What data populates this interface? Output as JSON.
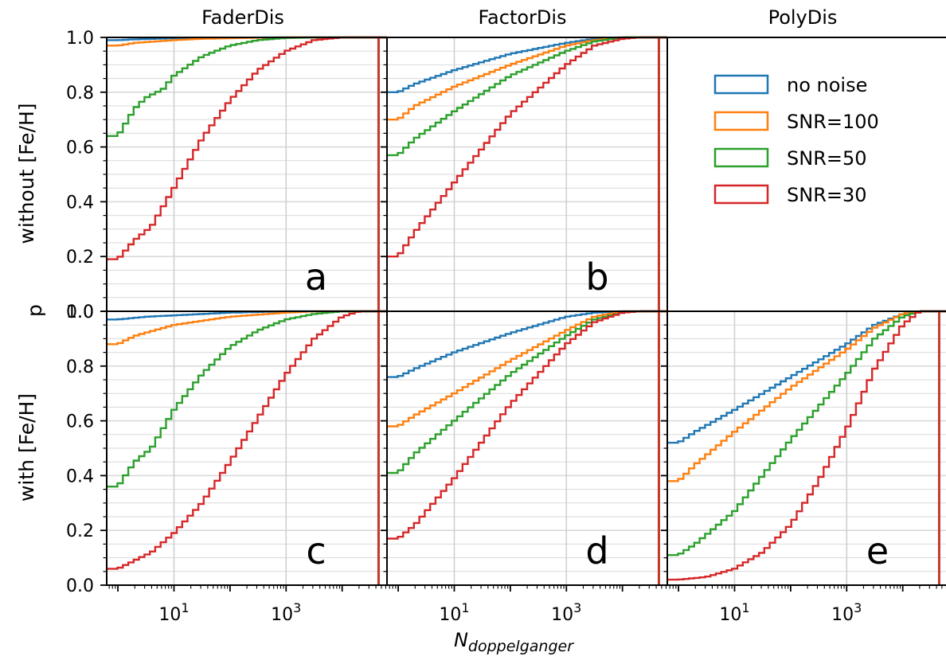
{
  "chart_data": {
    "type": "line",
    "steps": 52,
    "xlabel": "N",
    "xlabel_sub": "doppelganger",
    "ylabel_shared": "p",
    "row_labels": [
      "without [Fe/H]",
      "with [Fe/H]"
    ],
    "col_titles": [
      "FaderDis",
      "FactorDis",
      "PolyDis"
    ],
    "x_scale": "log",
    "xlim_log10": [
      -0.2,
      4.8
    ],
    "ylim": [
      0.0,
      1.0
    ],
    "x_ticks": [
      {
        "exp": 1,
        "base": "10",
        "sup": "1"
      },
      {
        "exp": 3,
        "base": "10",
        "sup": "3"
      }
    ],
    "y_ticks": [
      {
        "v": 0.0,
        "label": "0.0"
      },
      {
        "v": 0.2,
        "label": "0.2"
      },
      {
        "v": 0.4,
        "label": "0.4"
      },
      {
        "v": 0.6,
        "label": "0.6"
      },
      {
        "v": 0.8,
        "label": "0.8"
      },
      {
        "v": 1.0,
        "label": "1.0"
      }
    ],
    "grid": true,
    "vertical_line_log10": 4.65,
    "legend": {
      "location": "upper right of panel (top row, PolyDis)",
      "entries": [
        "no noise",
        "SNR=100",
        "SNR=50",
        "SNR=30"
      ]
    },
    "colors": {
      "no noise": "#1f77b4",
      "SNR=100": "#ff7f0e",
      "SNR=50": "#2ca02c",
      "SNR=30": "#d62728",
      "vline": "#c0392b"
    },
    "panels": [
      {
        "letter": "a",
        "row": 0,
        "col": 0,
        "series": [
          {
            "name": "no noise",
            "curve": [
              [
                0.0,
                0.99
              ],
              [
                0.3,
                0.993
              ],
              [
                1.0,
                0.997
              ],
              [
                2.0,
                0.999
              ],
              [
                3.0,
                1.0
              ],
              [
                4.8,
                1.0
              ]
            ]
          },
          {
            "name": "SNR=100",
            "curve": [
              [
                0.0,
                0.97
              ],
              [
                0.3,
                0.98
              ],
              [
                1.0,
                0.99
              ],
              [
                1.5,
                0.995
              ],
              [
                2.5,
                0.999
              ],
              [
                3.0,
                1.0
              ],
              [
                4.8,
                1.0
              ]
            ]
          },
          {
            "name": "SNR=50",
            "curve": [
              [
                0.0,
                0.64
              ],
              [
                0.3,
                0.74
              ],
              [
                0.5,
                0.78
              ],
              [
                0.8,
                0.81
              ],
              [
                1.0,
                0.86
              ],
              [
                1.5,
                0.93
              ],
              [
                2.0,
                0.97
              ],
              [
                2.5,
                0.99
              ],
              [
                3.0,
                0.998
              ],
              [
                3.5,
                1.0
              ],
              [
                4.8,
                1.0
              ]
            ]
          },
          {
            "name": "SNR=30",
            "curve": [
              [
                0.0,
                0.19
              ],
              [
                0.3,
                0.26
              ],
              [
                0.6,
                0.31
              ],
              [
                1.0,
                0.45
              ],
              [
                1.5,
                0.63
              ],
              [
                2.0,
                0.77
              ],
              [
                2.5,
                0.88
              ],
              [
                3.0,
                0.95
              ],
              [
                3.5,
                0.99
              ],
              [
                4.0,
                1.0
              ],
              [
                4.8,
                1.0
              ]
            ]
          }
        ]
      },
      {
        "letter": "b",
        "row": 0,
        "col": 1,
        "series": [
          {
            "name": "no noise",
            "curve": [
              [
                0.0,
                0.8
              ],
              [
                0.3,
                0.83
              ],
              [
                1.0,
                0.88
              ],
              [
                2.0,
                0.94
              ],
              [
                3.0,
                0.98
              ],
              [
                3.5,
                0.995
              ],
              [
                4.0,
                1.0
              ],
              [
                4.8,
                1.0
              ]
            ]
          },
          {
            "name": "SNR=100",
            "curve": [
              [
                0.0,
                0.7
              ],
              [
                0.3,
                0.75
              ],
              [
                1.0,
                0.82
              ],
              [
                2.0,
                0.9
              ],
              [
                3.0,
                0.97
              ],
              [
                3.5,
                0.99
              ],
              [
                4.0,
                1.0
              ],
              [
                4.8,
                1.0
              ]
            ]
          },
          {
            "name": "SNR=50",
            "curve": [
              [
                0.0,
                0.57
              ],
              [
                0.3,
                0.63
              ],
              [
                1.0,
                0.73
              ],
              [
                2.0,
                0.86
              ],
              [
                3.0,
                0.95
              ],
              [
                3.5,
                0.985
              ],
              [
                4.0,
                1.0
              ],
              [
                4.8,
                1.0
              ]
            ]
          },
          {
            "name": "SNR=30",
            "curve": [
              [
                0.0,
                0.2
              ],
              [
                0.3,
                0.29
              ],
              [
                1.0,
                0.47
              ],
              [
                2.0,
                0.72
              ],
              [
                3.0,
                0.9
              ],
              [
                3.5,
                0.97
              ],
              [
                4.0,
                0.995
              ],
              [
                4.3,
                1.0
              ],
              [
                4.8,
                1.0
              ]
            ]
          }
        ]
      },
      {
        "letter": "c",
        "row": 1,
        "col": 0,
        "series": [
          {
            "name": "no noise",
            "curve": [
              [
                0.0,
                0.97
              ],
              [
                0.5,
                0.98
              ],
              [
                1.0,
                0.985
              ],
              [
                2.0,
                0.995
              ],
              [
                3.0,
                1.0
              ],
              [
                4.8,
                1.0
              ]
            ]
          },
          {
            "name": "SNR=100",
            "curve": [
              [
                0.0,
                0.88
              ],
              [
                0.3,
                0.91
              ],
              [
                1.0,
                0.95
              ],
              [
                2.0,
                0.98
              ],
              [
                3.0,
                0.995
              ],
              [
                3.5,
                1.0
              ],
              [
                4.8,
                1.0
              ]
            ]
          },
          {
            "name": "SNR=50",
            "curve": [
              [
                0.0,
                0.36
              ],
              [
                0.3,
                0.45
              ],
              [
                0.6,
                0.5
              ],
              [
                1.0,
                0.64
              ],
              [
                1.5,
                0.77
              ],
              [
                2.0,
                0.87
              ],
              [
                2.5,
                0.93
              ],
              [
                3.0,
                0.97
              ],
              [
                3.5,
                0.99
              ],
              [
                4.0,
                1.0
              ],
              [
                4.8,
                1.0
              ]
            ]
          },
          {
            "name": "SNR=30",
            "curve": [
              [
                0.0,
                0.06
              ],
              [
                0.3,
                0.09
              ],
              [
                0.6,
                0.12
              ],
              [
                1.0,
                0.19
              ],
              [
                1.5,
                0.3
              ],
              [
                2.0,
                0.45
              ],
              [
                2.5,
                0.61
              ],
              [
                3.0,
                0.77
              ],
              [
                3.5,
                0.9
              ],
              [
                4.0,
                0.98
              ],
              [
                4.3,
                1.0
              ],
              [
                4.8,
                1.0
              ]
            ]
          }
        ]
      },
      {
        "letter": "d",
        "row": 1,
        "col": 1,
        "series": [
          {
            "name": "no noise",
            "curve": [
              [
                0.0,
                0.76
              ],
              [
                0.3,
                0.79
              ],
              [
                1.0,
                0.85
              ],
              [
                2.0,
                0.92
              ],
              [
                3.0,
                0.98
              ],
              [
                3.5,
                0.995
              ],
              [
                4.0,
                1.0
              ],
              [
                4.8,
                1.0
              ]
            ]
          },
          {
            "name": "SNR=100",
            "curve": [
              [
                0.0,
                0.58
              ],
              [
                0.3,
                0.62
              ],
              [
                1.0,
                0.7
              ],
              [
                2.0,
                0.82
              ],
              [
                3.0,
                0.93
              ],
              [
                3.5,
                0.98
              ],
              [
                4.0,
                1.0
              ],
              [
                4.8,
                1.0
              ]
            ]
          },
          {
            "name": "SNR=50",
            "curve": [
              [
                0.0,
                0.41
              ],
              [
                0.3,
                0.48
              ],
              [
                1.0,
                0.6
              ],
              [
                2.0,
                0.77
              ],
              [
                3.0,
                0.91
              ],
              [
                3.5,
                0.97
              ],
              [
                4.0,
                0.995
              ],
              [
                4.3,
                1.0
              ],
              [
                4.8,
                1.0
              ]
            ]
          },
          {
            "name": "SNR=30",
            "curve": [
              [
                0.0,
                0.17
              ],
              [
                0.3,
                0.22
              ],
              [
                1.0,
                0.39
              ],
              [
                2.0,
                0.66
              ],
              [
                3.0,
                0.88
              ],
              [
                3.5,
                0.96
              ],
              [
                4.0,
                0.995
              ],
              [
                4.3,
                1.0
              ],
              [
                4.8,
                1.0
              ]
            ]
          }
        ]
      },
      {
        "letter": "e",
        "row": 1,
        "col": 2,
        "series": [
          {
            "name": "no noise",
            "curve": [
              [
                0.0,
                0.52
              ],
              [
                0.3,
                0.56
              ],
              [
                1.0,
                0.64
              ],
              [
                2.0,
                0.76
              ],
              [
                3.0,
                0.88
              ],
              [
                3.5,
                0.95
              ],
              [
                4.0,
                0.99
              ],
              [
                4.3,
                1.0
              ],
              [
                4.8,
                1.0
              ]
            ]
          },
          {
            "name": "SNR=100",
            "curve": [
              [
                0.0,
                0.38
              ],
              [
                0.3,
                0.44
              ],
              [
                1.0,
                0.56
              ],
              [
                2.0,
                0.72
              ],
              [
                3.0,
                0.86
              ],
              [
                3.5,
                0.94
              ],
              [
                4.0,
                0.99
              ],
              [
                4.3,
                1.0
              ],
              [
                4.8,
                1.0
              ]
            ]
          },
          {
            "name": "SNR=50",
            "curve": [
              [
                0.0,
                0.11
              ],
              [
                0.3,
                0.15
              ],
              [
                1.0,
                0.27
              ],
              [
                2.0,
                0.53
              ],
              [
                3.0,
                0.77
              ],
              [
                3.5,
                0.9
              ],
              [
                4.0,
                0.98
              ],
              [
                4.3,
                1.0
              ],
              [
                4.8,
                1.0
              ]
            ]
          },
          {
            "name": "SNR=30",
            "curve": [
              [
                0.0,
                0.02
              ],
              [
                0.5,
                0.03
              ],
              [
                1.0,
                0.06
              ],
              [
                1.5,
                0.12
              ],
              [
                2.0,
                0.22
              ],
              [
                2.5,
                0.38
              ],
              [
                3.0,
                0.57
              ],
              [
                3.5,
                0.79
              ],
              [
                4.0,
                0.95
              ],
              [
                4.3,
                1.0
              ],
              [
                4.8,
                1.0
              ]
            ]
          }
        ]
      }
    ]
  }
}
